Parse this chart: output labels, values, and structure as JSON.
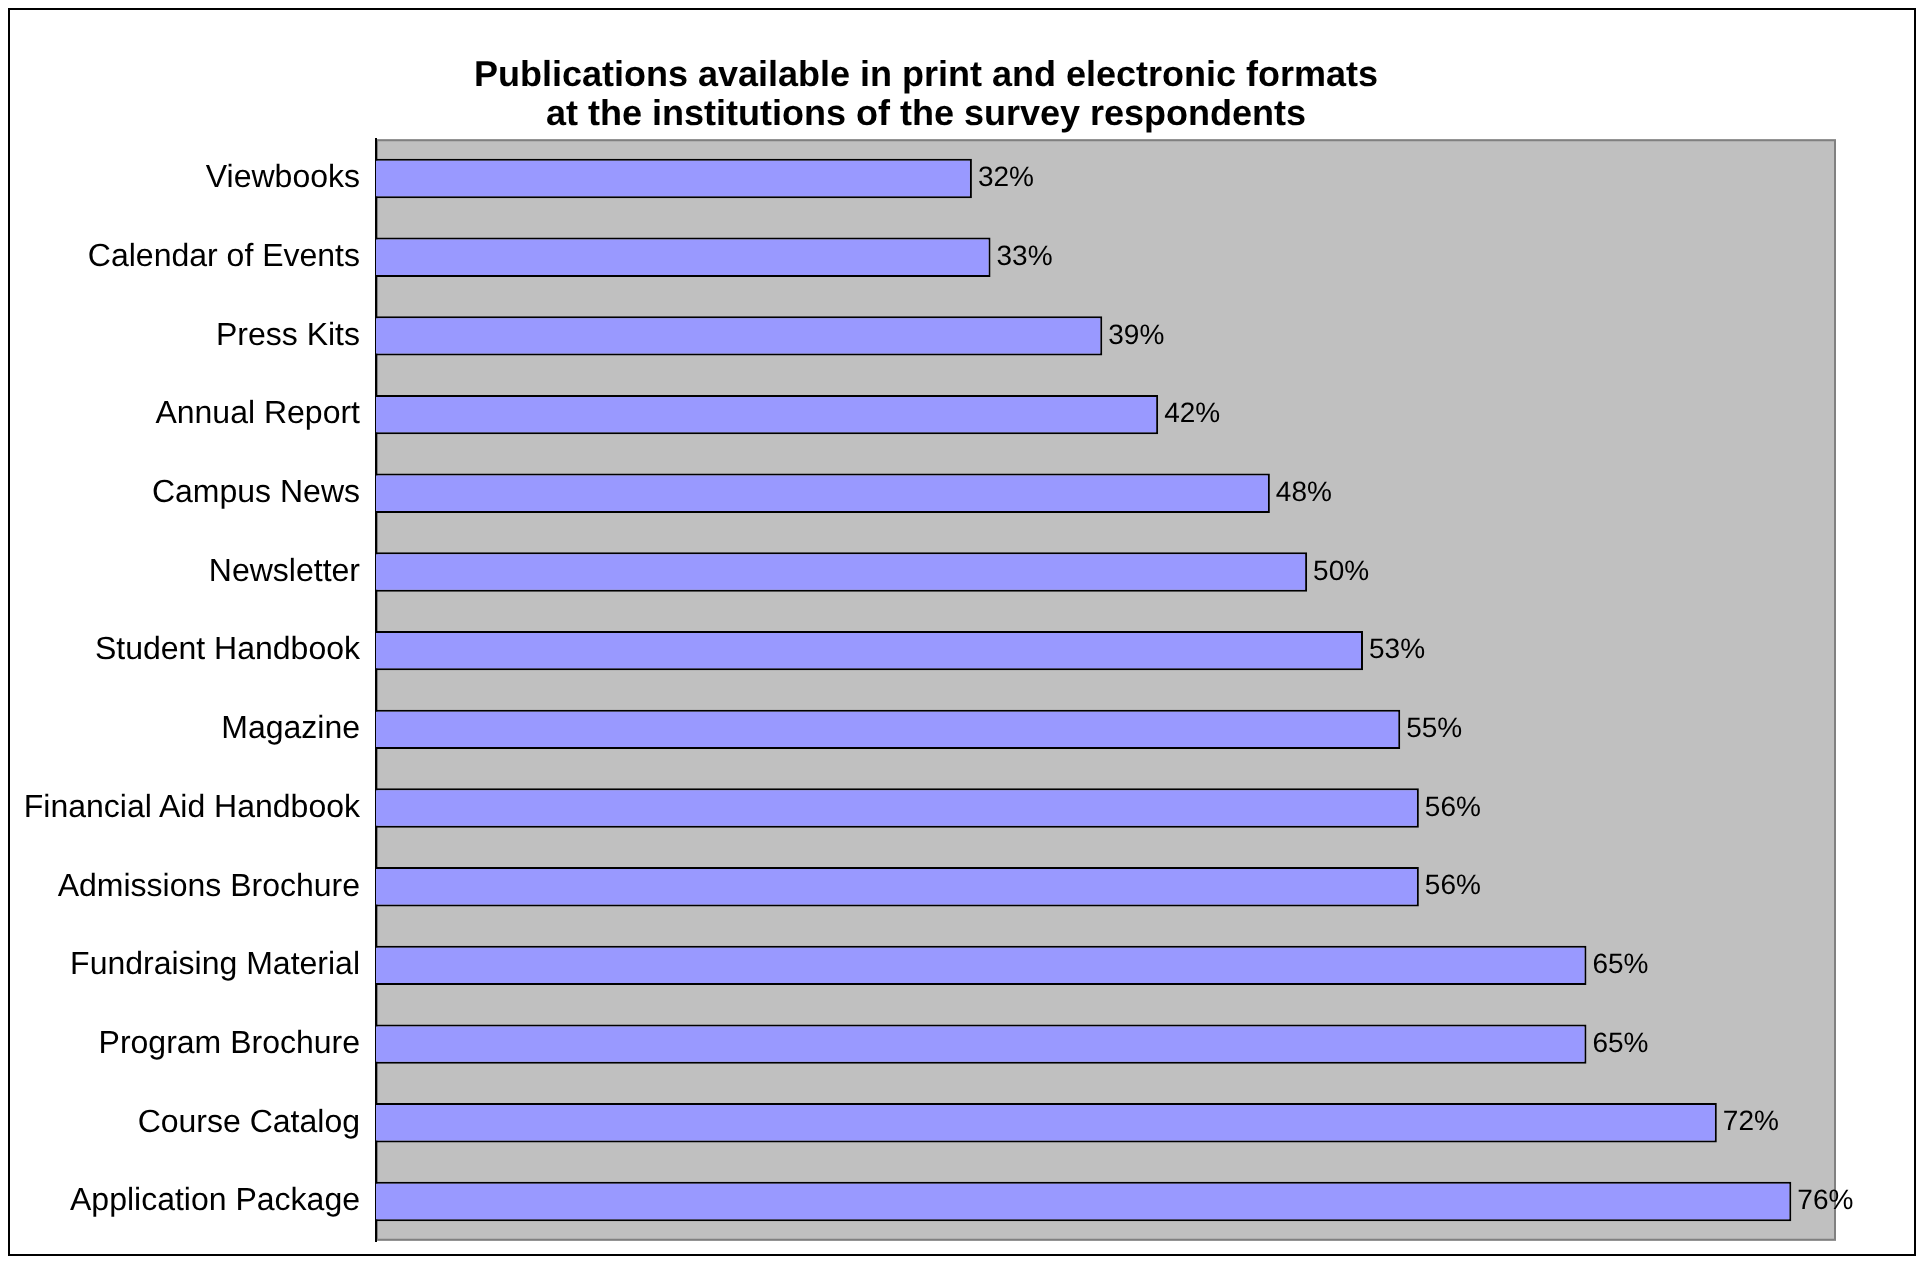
{
  "chart_data": {
    "type": "bar",
    "orientation": "horizontal",
    "title": "Publications available in print and electronic formats\nat the institutions of the survey respondents",
    "categories": [
      "Viewbooks",
      "Calendar of Events",
      "Press Kits",
      "Annual Report",
      "Campus News",
      "Newsletter",
      "Student Handbook",
      "Magazine",
      "Financial Aid Handbook",
      "Admissions Brochure",
      "Fundraising Material",
      "Program Brochure",
      "Course Catalog",
      "Application Package"
    ],
    "values": [
      32,
      33,
      39,
      42,
      48,
      50,
      53,
      55,
      56,
      56,
      65,
      65,
      72,
      76
    ],
    "value_labels": [
      "32%",
      "33%",
      "39%",
      "42%",
      "48%",
      "50%",
      "53%",
      "55%",
      "56%",
      "56%",
      "65%",
      "65%",
      "72%",
      "76%"
    ],
    "color": "#9999ff",
    "xlim": [
      0,
      78.4
    ],
    "grid": false,
    "legend": false,
    "tick_labels": "y"
  }
}
